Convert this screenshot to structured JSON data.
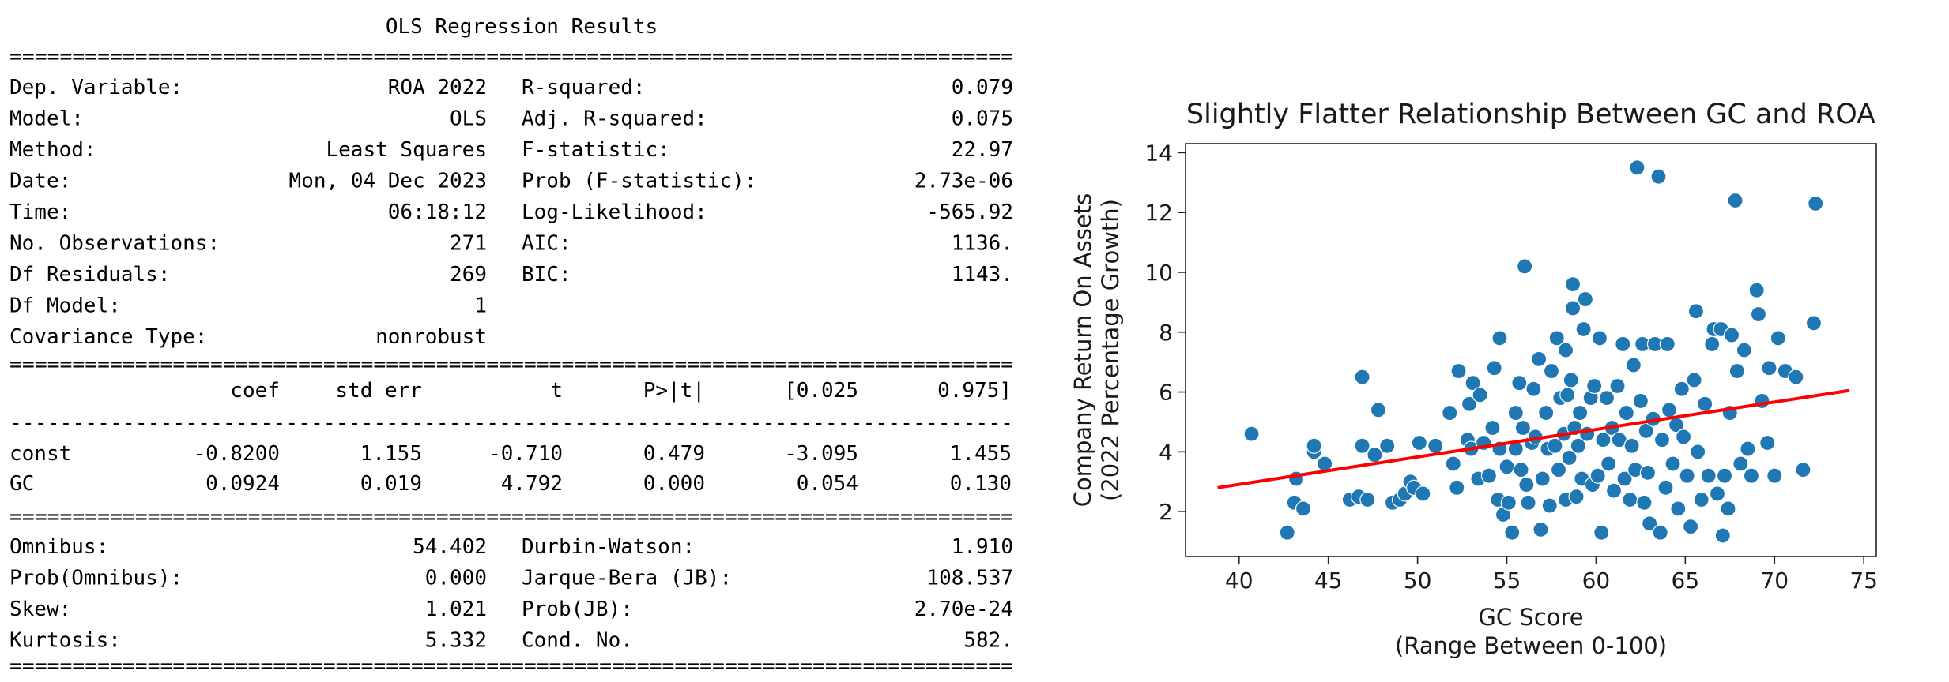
{
  "ols": {
    "title": "OLS Regression Results",
    "rule_double": "================================================================================",
    "rule_single": "--------------------------------------------------------------------------------",
    "summary_left": [
      {
        "label": "Dep. Variable:",
        "value": "ROA 2022"
      },
      {
        "label": "Model:",
        "value": "OLS"
      },
      {
        "label": "Method:",
        "value": "Least Squares"
      },
      {
        "label": "Date:",
        "value": "Mon, 04 Dec 2023"
      },
      {
        "label": "Time:",
        "value": "06:18:12"
      },
      {
        "label": "No. Observations:",
        "value": "271"
      },
      {
        "label": "Df Residuals:",
        "value": "269"
      },
      {
        "label": "Df Model:",
        "value": "1"
      },
      {
        "label": "Covariance Type:",
        "value": "nonrobust"
      }
    ],
    "summary_right": [
      {
        "label": "R-squared:",
        "value": "0.079"
      },
      {
        "label": "Adj. R-squared:",
        "value": "0.075"
      },
      {
        "label": "F-statistic:",
        "value": "22.97"
      },
      {
        "label": "Prob (F-statistic):",
        "value": "2.73e-06"
      },
      {
        "label": "Log-Likelihood:",
        "value": "-565.92"
      },
      {
        "label": "AIC:",
        "value": "1136."
      },
      {
        "label": "BIC:",
        "value": "1143."
      }
    ],
    "coef_headers": [
      "coef",
      "std err",
      "t",
      "P>|t|",
      "[0.025",
      "0.975]"
    ],
    "coef_rows": [
      {
        "name": "const",
        "values": [
          "-0.8200",
          "1.155",
          "-0.710",
          "0.479",
          "-3.095",
          "1.455"
        ]
      },
      {
        "name": "GC",
        "values": [
          "0.0924",
          "0.019",
          "4.792",
          "0.000",
          "0.054",
          "0.130"
        ]
      }
    ],
    "diag_left": [
      {
        "label": "Omnibus:",
        "value": "54.402"
      },
      {
        "label": "Prob(Omnibus):",
        "value": "0.000"
      },
      {
        "label": "Skew:",
        "value": "1.021"
      },
      {
        "label": "Kurtosis:",
        "value": "5.332"
      }
    ],
    "diag_right": [
      {
        "label": "Durbin-Watson:",
        "value": "1.910"
      },
      {
        "label": "Jarque-Bera (JB):",
        "value": "108.537"
      },
      {
        "label": "Prob(JB):",
        "value": "2.70e-24"
      },
      {
        "label": "Cond. No.",
        "value": "582."
      }
    ]
  },
  "chart_data": {
    "type": "scatter",
    "title": "Slightly Flatter Relationship Between GC and ROA",
    "xlabel": [
      "GC Score",
      "(Range Between 0-100)"
    ],
    "ylabel": [
      "Company Return On Assets",
      "(2022 Percentage Growth)"
    ],
    "xlim": [
      37,
      75.7
    ],
    "ylim": [
      0.5,
      14.3
    ],
    "xticks": [
      40,
      45,
      50,
      55,
      60,
      65,
      70,
      75
    ],
    "yticks": [
      2,
      4,
      6,
      8,
      10,
      12,
      14
    ],
    "point_color": "#1f77b4",
    "line_color": "#ff0000",
    "fit_line": [
      [
        38.8,
        2.8
      ],
      [
        74.2,
        6.05
      ]
    ],
    "points": [
      [
        40.7,
        4.6
      ],
      [
        42.7,
        1.3
      ],
      [
        43.2,
        3.1
      ],
      [
        43.1,
        2.3
      ],
      [
        43.6,
        2.1
      ],
      [
        44.2,
        4.0
      ],
      [
        44.2,
        4.2
      ],
      [
        44.8,
        3.6
      ],
      [
        46.2,
        2.4
      ],
      [
        46.7,
        2.5
      ],
      [
        46.9,
        4.2
      ],
      [
        46.9,
        6.5
      ],
      [
        47.2,
        2.4
      ],
      [
        47.6,
        3.9
      ],
      [
        47.8,
        5.4
      ],
      [
        48.3,
        4.2
      ],
      [
        48.6,
        2.3
      ],
      [
        49.0,
        2.4
      ],
      [
        49.3,
        2.6
      ],
      [
        49.6,
        3.0
      ],
      [
        49.8,
        2.8
      ],
      [
        50.1,
        4.3
      ],
      [
        50.3,
        2.6
      ],
      [
        51.0,
        4.2
      ],
      [
        51.8,
        5.3
      ],
      [
        52.0,
        3.6
      ],
      [
        52.3,
        6.7
      ],
      [
        52.2,
        2.8
      ],
      [
        52.8,
        4.4
      ],
      [
        52.9,
        5.6
      ],
      [
        53.0,
        4.1
      ],
      [
        53.1,
        6.3
      ],
      [
        53.4,
        3.1
      ],
      [
        53.5,
        5.9
      ],
      [
        53.7,
        4.3
      ],
      [
        54.0,
        3.2
      ],
      [
        54.2,
        4.8
      ],
      [
        54.3,
        6.8
      ],
      [
        54.5,
        2.4
      ],
      [
        54.6,
        4.1
      ],
      [
        54.6,
        7.8
      ],
      [
        54.8,
        1.9
      ],
      [
        55.0,
        3.5
      ],
      [
        55.1,
        2.3
      ],
      [
        55.3,
        1.3
      ],
      [
        55.5,
        4.1
      ],
      [
        55.5,
        5.3
      ],
      [
        55.7,
        6.3
      ],
      [
        55.8,
        3.4
      ],
      [
        55.9,
        4.8
      ],
      [
        56.0,
        10.2
      ],
      [
        56.1,
        2.9
      ],
      [
        56.2,
        2.3
      ],
      [
        56.4,
        4.3
      ],
      [
        56.5,
        6.1
      ],
      [
        56.6,
        4.5
      ],
      [
        56.8,
        7.1
      ],
      [
        56.9,
        1.4
      ],
      [
        57.0,
        3.1
      ],
      [
        57.2,
        5.3
      ],
      [
        57.3,
        4.1
      ],
      [
        57.4,
        2.2
      ],
      [
        57.5,
        6.7
      ],
      [
        57.7,
        4.2
      ],
      [
        57.8,
        7.8
      ],
      [
        57.9,
        3.4
      ],
      [
        58.0,
        5.8
      ],
      [
        58.2,
        4.6
      ],
      [
        58.3,
        2.4
      ],
      [
        58.3,
        7.4
      ],
      [
        58.4,
        5.9
      ],
      [
        58.5,
        3.8
      ],
      [
        58.6,
        6.4
      ],
      [
        58.7,
        8.8
      ],
      [
        58.7,
        9.6
      ],
      [
        58.8,
        4.8
      ],
      [
        58.9,
        2.5
      ],
      [
        59.0,
        4.2
      ],
      [
        59.1,
        5.3
      ],
      [
        59.2,
        3.1
      ],
      [
        59.3,
        8.1
      ],
      [
        59.4,
        9.1
      ],
      [
        59.5,
        4.6
      ],
      [
        59.7,
        5.8
      ],
      [
        59.8,
        2.9
      ],
      [
        59.9,
        6.2
      ],
      [
        60.1,
        3.2
      ],
      [
        60.2,
        7.8
      ],
      [
        60.3,
        1.3
      ],
      [
        60.4,
        4.4
      ],
      [
        60.6,
        5.8
      ],
      [
        60.7,
        3.6
      ],
      [
        60.9,
        4.8
      ],
      [
        61.0,
        2.7
      ],
      [
        61.2,
        6.2
      ],
      [
        61.3,
        4.4
      ],
      [
        61.5,
        7.6
      ],
      [
        61.6,
        3.1
      ],
      [
        61.7,
        5.3
      ],
      [
        61.9,
        2.4
      ],
      [
        62.0,
        4.2
      ],
      [
        62.1,
        6.9
      ],
      [
        62.2,
        3.4
      ],
      [
        62.3,
        13.5
      ],
      [
        62.5,
        5.7
      ],
      [
        62.6,
        7.6
      ],
      [
        62.7,
        2.3
      ],
      [
        62.8,
        4.7
      ],
      [
        62.9,
        3.3
      ],
      [
        63.0,
        1.6
      ],
      [
        63.2,
        5.1
      ],
      [
        63.3,
        7.6
      ],
      [
        63.5,
        13.2
      ],
      [
        63.6,
        1.3
      ],
      [
        63.7,
        4.4
      ],
      [
        63.9,
        2.8
      ],
      [
        64.0,
        7.6
      ],
      [
        64.1,
        5.4
      ],
      [
        64.3,
        3.6
      ],
      [
        64.5,
        4.9
      ],
      [
        64.6,
        2.1
      ],
      [
        64.8,
        6.1
      ],
      [
        64.9,
        4.5
      ],
      [
        65.1,
        3.2
      ],
      [
        65.3,
        1.5
      ],
      [
        65.5,
        6.4
      ],
      [
        65.6,
        8.7
      ],
      [
        65.7,
        4.0
      ],
      [
        65.9,
        2.4
      ],
      [
        66.1,
        5.6
      ],
      [
        66.3,
        3.2
      ],
      [
        66.5,
        7.6
      ],
      [
        66.6,
        8.1
      ],
      [
        66.8,
        2.6
      ],
      [
        67.0,
        8.1
      ],
      [
        67.1,
        1.2
      ],
      [
        67.2,
        3.2
      ],
      [
        67.4,
        2.1
      ],
      [
        67.5,
        5.3
      ],
      [
        67.6,
        7.9
      ],
      [
        67.8,
        12.4
      ],
      [
        67.9,
        6.7
      ],
      [
        68.1,
        3.6
      ],
      [
        68.3,
        7.4
      ],
      [
        68.5,
        4.1
      ],
      [
        68.7,
        3.2
      ],
      [
        69.0,
        9.4
      ],
      [
        69.1,
        8.6
      ],
      [
        69.3,
        5.7
      ],
      [
        69.6,
        4.3
      ],
      [
        69.7,
        6.8
      ],
      [
        70.0,
        3.2
      ],
      [
        70.2,
        7.8
      ],
      [
        70.6,
        6.7
      ],
      [
        71.2,
        6.5
      ],
      [
        71.6,
        3.4
      ],
      [
        72.2,
        8.3
      ],
      [
        72.3,
        12.3
      ]
    ]
  }
}
